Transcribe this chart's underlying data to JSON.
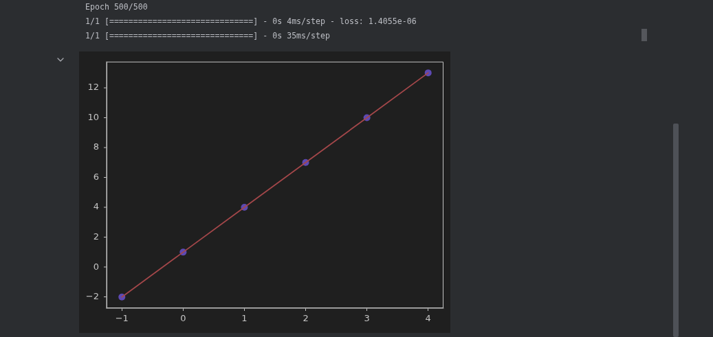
{
  "chart_data": {
    "type": "scatter",
    "annotations": [
      "Epoch 500/500",
      "1/1 [==============================] - 0s 4ms/step - loss: 1.4055e-06",
      "1/1 [==============================] - 0s 35ms/step"
    ],
    "x": [
      -1,
      0,
      1,
      2,
      3,
      4
    ],
    "series": [
      {
        "type": "scatter",
        "color": "#6650c8",
        "values": [
          -2,
          1,
          4,
          7,
          10,
          13
        ]
      },
      {
        "type": "line",
        "color": "#a4474a",
        "marker": "none",
        "values": [
          -2,
          1,
          4,
          7,
          10,
          13
        ]
      }
    ],
    "marker": "circle",
    "xlim": [
      -1.25,
      4.25
    ],
    "xticks": [
      {
        "value": -1,
        "label": "−1"
      },
      0,
      1,
      2,
      3,
      4
    ],
    "ylim": [
      -2.75,
      13.75
    ],
    "yticks": [
      {
        "value": -2,
        "label": "−2"
      },
      0,
      2,
      4,
      6,
      8,
      10,
      12
    ]
  }
}
